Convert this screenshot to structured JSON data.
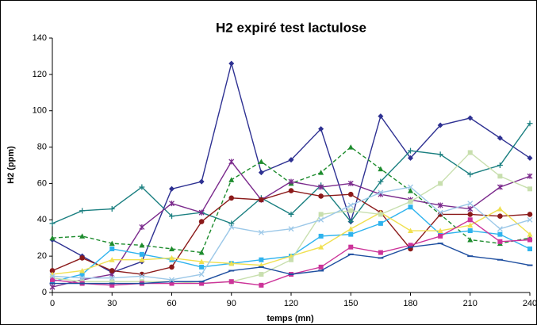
{
  "chart_data": {
    "type": "line",
    "title": "H2 expiré test lactulose",
    "xlabel": "temps (mn)",
    "ylabel": "H2 (ppm)",
    "x": [
      0,
      15,
      30,
      45,
      60,
      75,
      90,
      105,
      120,
      135,
      150,
      165,
      180,
      195,
      210,
      225,
      240
    ],
    "xlim": [
      0,
      240
    ],
    "xticks": [
      0,
      30,
      60,
      90,
      120,
      150,
      180,
      210,
      240
    ],
    "ylim": [
      0,
      140
    ],
    "yticks": [
      0,
      20,
      40,
      60,
      80,
      100,
      120,
      140
    ],
    "grid": false,
    "series": [
      {
        "color": "#2e3192",
        "marker": "diamond",
        "values": [
          29,
          20,
          11,
          17,
          57,
          61,
          126,
          66,
          73,
          90,
          39,
          97,
          74,
          92,
          96,
          85,
          74
        ]
      },
      {
        "color": "#1a7f80",
        "marker": "plus",
        "values": [
          38,
          45,
          46,
          58,
          42,
          44,
          38,
          52,
          43,
          59,
          39,
          61,
          78,
          76,
          65,
          70,
          93
        ]
      },
      {
        "color": "#1e8c2e",
        "marker": "triangle",
        "dashed": true,
        "values": [
          30,
          31,
          27,
          26,
          24,
          22,
          62,
          72,
          60,
          66,
          80,
          68,
          56,
          43,
          29,
          27,
          30
        ]
      },
      {
        "color": "#7b2a8c",
        "marker": "star",
        "values": [
          3,
          7,
          10,
          36,
          49,
          44,
          72,
          51,
          61,
          58,
          60,
          54,
          51,
          48,
          46,
          58,
          64
        ]
      },
      {
        "color": "#8b1a1a",
        "marker": "circle",
        "values": [
          12,
          19,
          12,
          10,
          14,
          39,
          52,
          51,
          56,
          53,
          54,
          44,
          24,
          43,
          43,
          42,
          43
        ]
      },
      {
        "color": "#2eb3ee",
        "marker": "square",
        "values": [
          6,
          10,
          24,
          21,
          18,
          14,
          16,
          18,
          20,
          31,
          32,
          38,
          47,
          32,
          34,
          32,
          24
        ]
      },
      {
        "color": "#f0e050",
        "marker": "triangle",
        "values": [
          10,
          12,
          18,
          18,
          19,
          17,
          16,
          15,
          20,
          25,
          35,
          44,
          34,
          34,
          37,
          46,
          32
        ]
      },
      {
        "color": "#c8dfae",
        "marker": "square",
        "values": [
          8,
          6,
          6,
          6,
          6,
          5,
          6,
          10,
          18,
          43,
          45,
          43,
          50,
          60,
          77,
          64,
          57
        ]
      },
      {
        "color": "#cc3399",
        "marker": "square",
        "values": [
          7,
          5,
          4,
          5,
          5,
          5,
          6,
          4,
          10,
          14,
          25,
          22,
          26,
          31,
          40,
          28,
          29
        ]
      },
      {
        "color": "#1f4fa0",
        "marker": "dash",
        "values": [
          5,
          5,
          5,
          5,
          6,
          6,
          12,
          14,
          10,
          12,
          21,
          19,
          25,
          27,
          20,
          18,
          15
        ]
      },
      {
        "color": "#9cc8e8",
        "marker": "x",
        "values": [
          9,
          8,
          8,
          9,
          7,
          10,
          36,
          33,
          35,
          40,
          48,
          55,
          58,
          44,
          49,
          35,
          40
        ]
      }
    ]
  }
}
